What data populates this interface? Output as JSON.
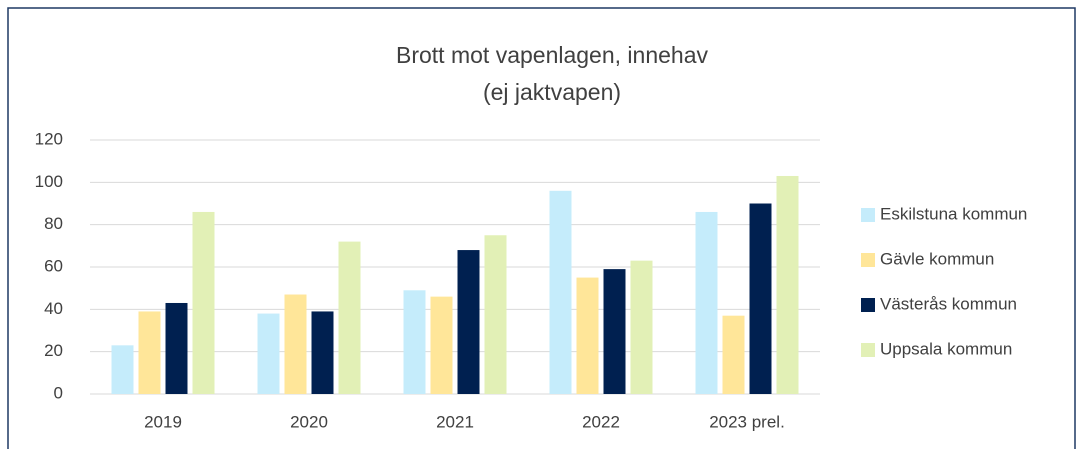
{
  "chart_data": {
    "type": "bar",
    "title": [
      "Brott mot vapenlagen, innehav",
      "(ej jaktvapen)"
    ],
    "categories": [
      "2019",
      "2020",
      "2021",
      "2022",
      "2023 prel."
    ],
    "series": [
      {
        "name": "Eskilstuna kommun",
        "color": "#c5ecfb",
        "values": [
          23,
          38,
          49,
          96,
          86
        ]
      },
      {
        "name": "Gävle kommun",
        "color": "#ffe699",
        "values": [
          39,
          47,
          46,
          55,
          37
        ]
      },
      {
        "name": "Västerås kommun",
        "color": "#002050",
        "values": [
          43,
          39,
          68,
          59,
          90
        ]
      },
      {
        "name": "Uppsala kommun",
        "color": "#e2f0b6",
        "values": [
          86,
          72,
          75,
          63,
          103
        ]
      }
    ],
    "ylim": [
      0,
      120
    ],
    "yticks": [
      0,
      20,
      40,
      60,
      80,
      100,
      120
    ],
    "grid": true,
    "legend": "right"
  }
}
